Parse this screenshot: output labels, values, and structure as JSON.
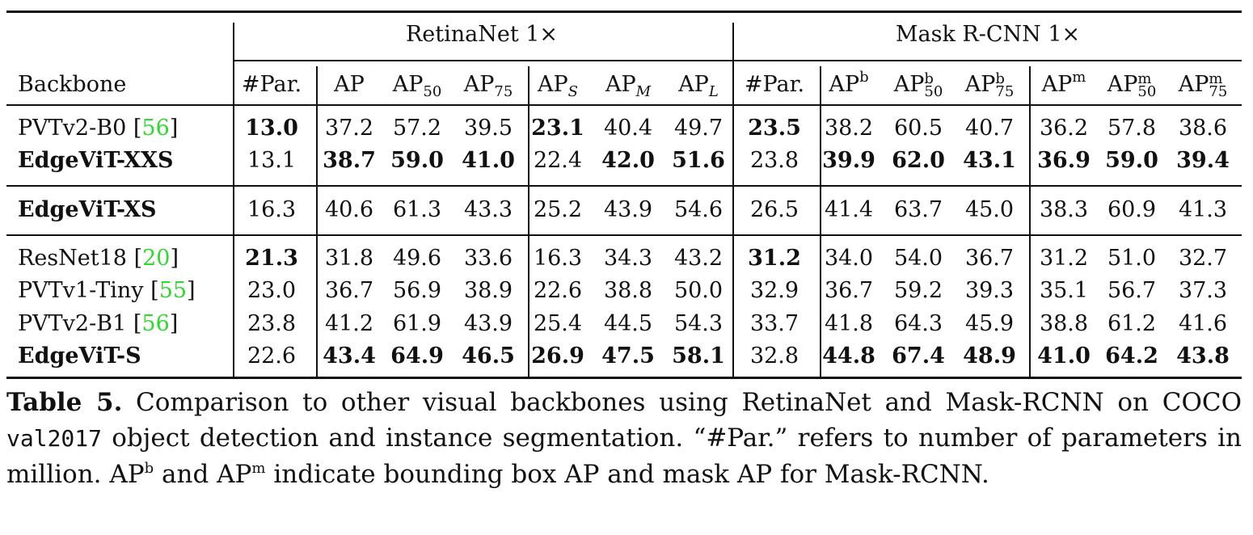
{
  "groups": {
    "retina": "RetinaNet 1×",
    "mask": "Mask R-CNN 1×"
  },
  "col_headers": {
    "backbone": "Backbone",
    "par": "#Par.",
    "ap": "AP",
    "ap_base": "AP",
    "s50": "50",
    "s75": "75",
    "sS": "S",
    "sM": "M",
    "sL": "L",
    "b": "b",
    "m": "m"
  },
  "rows": [
    {
      "name": "PVTv2-B0 ",
      "cite": "56",
      "bold_name": false,
      "vals": [
        "13.0",
        "37.2",
        "57.2",
        "39.5",
        "23.1",
        "40.4",
        "49.7",
        "23.5",
        "38.2",
        "60.5",
        "40.7",
        "36.2",
        "57.8",
        "38.6"
      ],
      "bold": [
        0,
        4,
        7
      ]
    },
    {
      "name": "EdgeViT-XXS",
      "cite": "",
      "bold_name": true,
      "vals": [
        "13.1",
        "38.7",
        "59.0",
        "41.0",
        "22.4",
        "42.0",
        "51.6",
        "23.8",
        "39.9",
        "62.0",
        "43.1",
        "36.9",
        "59.0",
        "39.4"
      ],
      "bold": [
        1,
        2,
        3,
        5,
        6,
        8,
        9,
        10,
        11,
        12,
        13
      ]
    },
    {
      "name": "EdgeViT-XS",
      "cite": "",
      "bold_name": true,
      "vals": [
        "16.3",
        "40.6",
        "61.3",
        "43.3",
        "25.2",
        "43.9",
        "54.6",
        "26.5",
        "41.4",
        "63.7",
        "45.0",
        "38.3",
        "60.9",
        "41.3"
      ],
      "bold": []
    },
    {
      "name": "ResNet18 ",
      "cite": "20",
      "bold_name": false,
      "vals": [
        "21.3",
        "31.8",
        "49.6",
        "33.6",
        "16.3",
        "34.3",
        "43.2",
        "31.2",
        "34.0",
        "54.0",
        "36.7",
        "31.2",
        "51.0",
        "32.7"
      ],
      "bold": [
        0,
        7
      ]
    },
    {
      "name": "PVTv1-Tiny ",
      "cite": "55",
      "bold_name": false,
      "vals": [
        "23.0",
        "36.7",
        "56.9",
        "38.9",
        "22.6",
        "38.8",
        "50.0",
        "32.9",
        "36.7",
        "59.2",
        "39.3",
        "35.1",
        "56.7",
        "37.3"
      ],
      "bold": []
    },
    {
      "name": "PVTv2-B1 ",
      "cite": "56",
      "bold_name": false,
      "vals": [
        "23.8",
        "41.2",
        "61.9",
        "43.9",
        "25.4",
        "44.5",
        "54.3",
        "33.7",
        "41.8",
        "64.3",
        "45.9",
        "38.8",
        "61.2",
        "41.6"
      ],
      "bold": []
    },
    {
      "name": "EdgeViT-S",
      "cite": "",
      "bold_name": true,
      "vals": [
        "22.6",
        "43.4",
        "64.9",
        "46.5",
        "26.9",
        "47.5",
        "58.1",
        "32.8",
        "44.8",
        "67.4",
        "48.9",
        "41.0",
        "64.2",
        "43.8"
      ],
      "bold": [
        1,
        2,
        3,
        4,
        5,
        6,
        8,
        9,
        10,
        11,
        12,
        13
      ]
    }
  ],
  "caption": {
    "label": "Table 5.",
    "part1": " Comparison to other visual backbones using RetinaNet and Mask-RCNN on COCO ",
    "code": "val2017",
    "part2": " object detection and instance segmentation. “#Par.” refers to number of parameters in million. AP",
    "sup_b": "b",
    "part3": " and AP",
    "sup_m": "m",
    "part4": " indicate bounding box AP and mask AP for Mask-RCNN."
  }
}
